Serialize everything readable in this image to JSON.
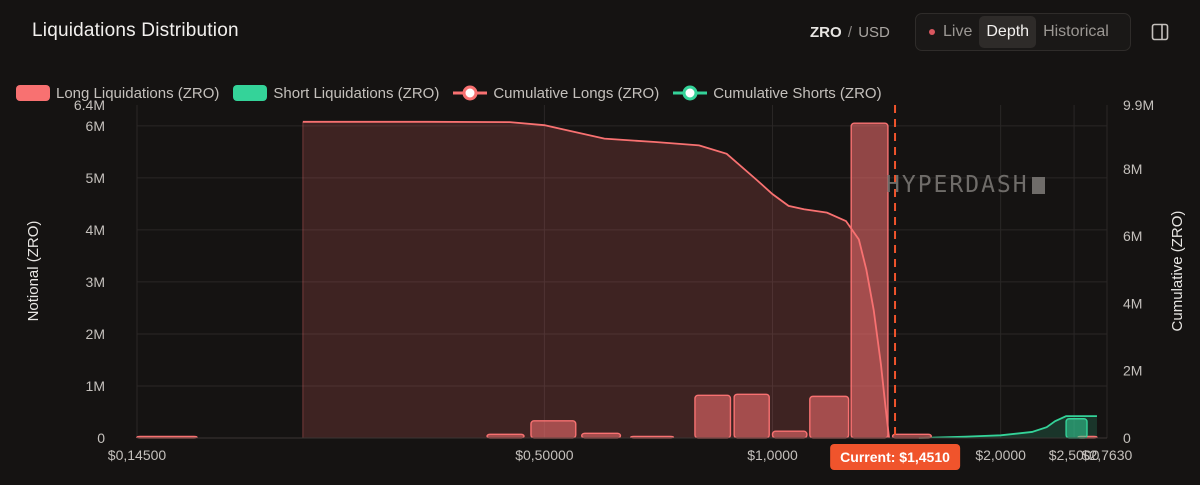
{
  "header": {
    "title": "Liquidations Distribution",
    "pair_base": "ZRO",
    "pair_sep": "/",
    "pair_quote": "USD",
    "modes": [
      {
        "label": "Live",
        "active": false
      },
      {
        "label": "Depth",
        "active": true
      },
      {
        "label": "Historical",
        "active": false
      }
    ]
  },
  "watermark": "HYPERDASH",
  "current_price_label": "Current: $1,4510",
  "colors": {
    "long": "#f87171",
    "short": "#34d399",
    "current_line": "#f0542c",
    "live_dot": "#d9575f"
  },
  "chart_data": {
    "type": "bar",
    "x_scale": "log",
    "xlim": [
      0.145,
      2.763
    ],
    "x_ticks": [
      {
        "value": 0.145,
        "label": "$0,14500"
      },
      {
        "value": 0.5,
        "label": "$0,50000"
      },
      {
        "value": 1.0,
        "label": "$1,0000"
      },
      {
        "value": 2.0,
        "label": "$2,0000"
      },
      {
        "value": 2.5,
        "label": "$2,5000"
      },
      {
        "value": 2.763,
        "label": "$2,7630"
      }
    ],
    "ylabel": "Notional (ZRO)",
    "ylim": [
      0,
      6400000
    ],
    "y_ticks": [
      {
        "value": 0,
        "label": "0"
      },
      {
        "value": 1000000,
        "label": "1M"
      },
      {
        "value": 2000000,
        "label": "2M"
      },
      {
        "value": 3000000,
        "label": "3M"
      },
      {
        "value": 4000000,
        "label": "4M"
      },
      {
        "value": 5000000,
        "label": "5M"
      },
      {
        "value": 6000000,
        "label": "6M"
      },
      {
        "value": 6400000,
        "label": "6.4M"
      }
    ],
    "y2label": "Cumulative (ZRO)",
    "y2lim": [
      0,
      9900000
    ],
    "y2_ticks": [
      {
        "value": 0,
        "label": "0"
      },
      {
        "value": 2000000,
        "label": "2M"
      },
      {
        "value": 4000000,
        "label": "4M"
      },
      {
        "value": 6000000,
        "label": "6M"
      },
      {
        "value": 8000000,
        "label": "8M"
      },
      {
        "value": 9900000,
        "label": "9.9M"
      }
    ],
    "current_price": 1.451,
    "legend": [
      {
        "label": "Long Liquidations (ZRO)",
        "kind": "bar",
        "color": "#f87171"
      },
      {
        "label": "Short Liquidations (ZRO)",
        "kind": "bar",
        "color": "#34d399"
      },
      {
        "label": "Cumulative Longs (ZRO)",
        "kind": "line",
        "color": "#f87171"
      },
      {
        "label": "Cumulative Shorts (ZRO)",
        "kind": "line",
        "color": "#34d399"
      }
    ],
    "long_bars": [
      {
        "x0": 0.145,
        "x1": 0.174,
        "value": 10000
      },
      {
        "x0": 0.42,
        "x1": 0.47,
        "value": 70000
      },
      {
        "x0": 0.48,
        "x1": 0.55,
        "value": 330000
      },
      {
        "x0": 0.56,
        "x1": 0.63,
        "value": 90000
      },
      {
        "x0": 0.65,
        "x1": 0.74,
        "value": 30000
      },
      {
        "x0": 0.79,
        "x1": 0.88,
        "value": 820000
      },
      {
        "x0": 0.89,
        "x1": 0.99,
        "value": 840000
      },
      {
        "x0": 1.0,
        "x1": 1.11,
        "value": 130000
      },
      {
        "x0": 1.12,
        "x1": 1.26,
        "value": 800000
      },
      {
        "x0": 1.27,
        "x1": 1.42,
        "value": 6050000
      },
      {
        "x0": 1.44,
        "x1": 1.62,
        "value": 70000
      },
      {
        "x0": 2.53,
        "x1": 2.68,
        "value": 10000
      }
    ],
    "short_bars": [
      {
        "x0": 2.44,
        "x1": 2.6,
        "value": 370000
      }
    ],
    "cumulative_longs": [
      [
        0.24,
        9400000
      ],
      [
        0.35,
        9400000
      ],
      [
        0.45,
        9390000
      ],
      [
        0.5,
        9300000
      ],
      [
        0.6,
        8900000
      ],
      [
        0.7,
        8800000
      ],
      [
        0.8,
        8700000
      ],
      [
        0.87,
        8450000
      ],
      [
        0.95,
        7700000
      ],
      [
        1.0,
        7250000
      ],
      [
        1.05,
        6900000
      ],
      [
        1.1,
        6800000
      ],
      [
        1.18,
        6700000
      ],
      [
        1.25,
        6450000
      ],
      [
        1.3,
        5900000
      ],
      [
        1.33,
        5000000
      ],
      [
        1.36,
        3800000
      ],
      [
        1.39,
        2200000
      ],
      [
        1.41,
        900000
      ],
      [
        1.425,
        0
      ]
    ],
    "cumulative_shorts": [
      [
        1.56,
        0
      ],
      [
        1.8,
        40000
      ],
      [
        2.0,
        80000
      ],
      [
        2.2,
        180000
      ],
      [
        2.3,
        320000
      ],
      [
        2.36,
        500000
      ],
      [
        2.44,
        650000
      ],
      [
        2.55,
        650000
      ],
      [
        2.68,
        650000
      ]
    ]
  }
}
